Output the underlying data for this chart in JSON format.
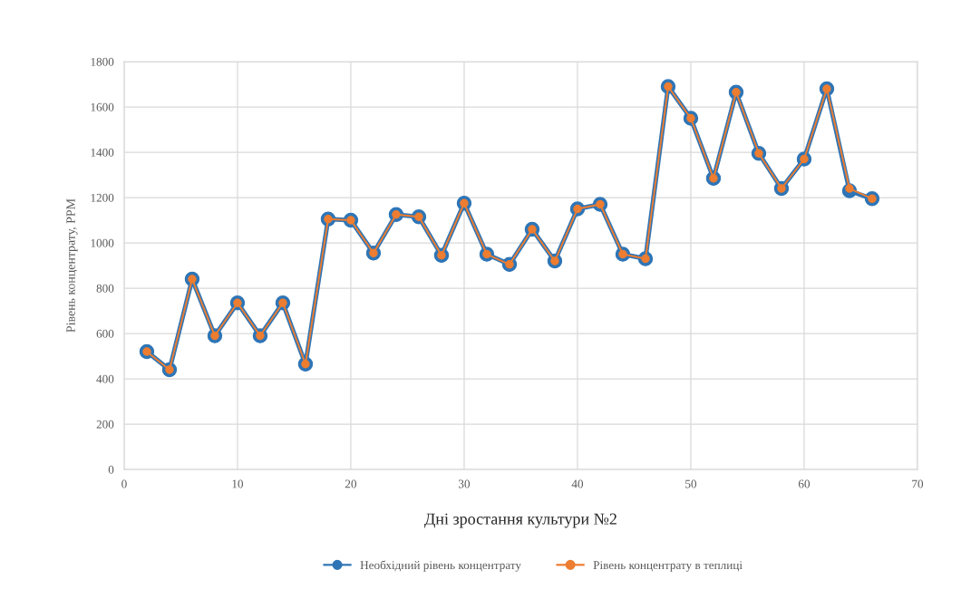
{
  "chart_data": {
    "type": "line",
    "xlabel": "Дні зростання культури №2",
    "ylabel": "Рівень концентрату, PPM",
    "x": [
      2,
      4,
      6,
      8,
      10,
      12,
      14,
      16,
      18,
      20,
      22,
      24,
      26,
      28,
      30,
      32,
      34,
      36,
      38,
      40,
      42,
      44,
      46,
      48,
      50,
      52,
      54,
      56,
      58,
      60,
      62,
      64,
      66
    ],
    "series": [
      {
        "name": "Необхідний рівень концентрату",
        "color": "#2e75b6",
        "values": [
          520,
          440,
          840,
          590,
          735,
          590,
          735,
          465,
          1105,
          1100,
          955,
          1125,
          1115,
          945,
          1175,
          950,
          905,
          1060,
          920,
          1150,
          1170,
          950,
          930,
          1690,
          1550,
          1285,
          1665,
          1395,
          1240,
          1370,
          1680,
          1230,
          1195
        ]
      },
      {
        "name": "Рівень концентрату в теплиці",
        "color": "#ed7d31",
        "values": [
          520,
          440,
          840,
          590,
          735,
          590,
          735,
          465,
          1105,
          1100,
          955,
          1125,
          1115,
          945,
          1175,
          950,
          905,
          1060,
          920,
          1150,
          1170,
          950,
          930,
          1690,
          1550,
          1285,
          1665,
          1395,
          1240,
          1370,
          1680,
          1240,
          1195
        ]
      }
    ],
    "xlim": [
      0,
      70
    ],
    "xticks": [
      0,
      10,
      20,
      30,
      40,
      50,
      60,
      70
    ],
    "ylim": [
      0,
      1800
    ],
    "yticks": [
      0,
      200,
      400,
      600,
      800,
      1000,
      1200,
      1400,
      1600,
      1800
    ],
    "grid": true,
    "legend": "bottom",
    "marker": "circle",
    "line_style": "solid"
  }
}
